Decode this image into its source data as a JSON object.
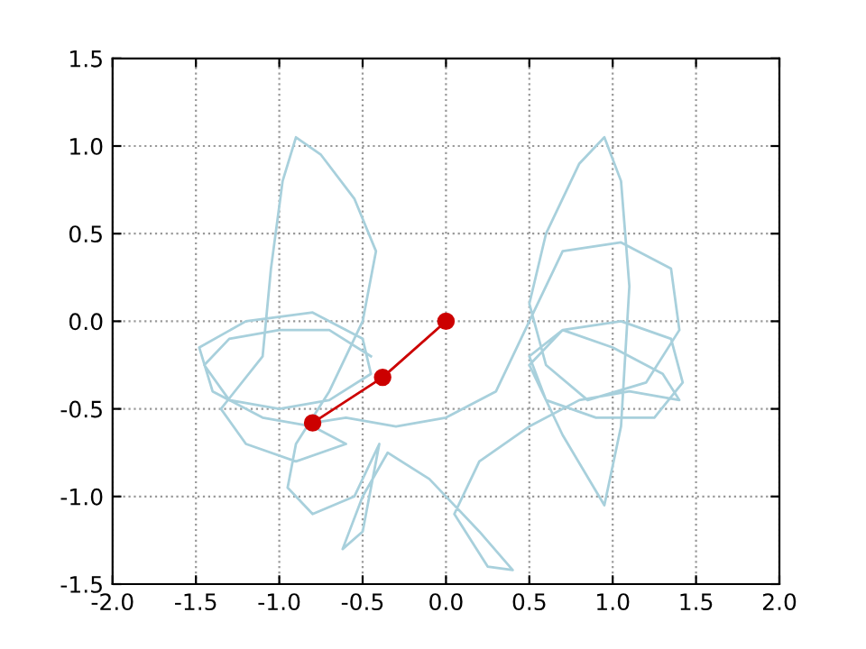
{
  "chart_data": {
    "type": "line",
    "grid": true,
    "xlim": [
      -2.0,
      2.0
    ],
    "xticks": [
      {
        "value": -2.0,
        "label": "-2.0"
      },
      {
        "value": -1.5,
        "label": "-1.5"
      },
      {
        "value": -1.0,
        "label": "-1.0"
      },
      {
        "value": -0.5,
        "label": "-0.5"
      },
      {
        "value": 0.0,
        "label": "0.0"
      },
      {
        "value": 0.5,
        "label": "0.5"
      },
      {
        "value": 1.0,
        "label": "1.0"
      },
      {
        "value": 1.5,
        "label": "1.5"
      },
      {
        "value": 2.0,
        "label": "2.0"
      }
    ],
    "ylim": [
      -1.5,
      1.5
    ],
    "yticks": [
      {
        "value": -1.5,
        "label": "-1.5"
      },
      {
        "value": -1.0,
        "label": "-1.0"
      },
      {
        "value": -0.5,
        "label": "-0.5"
      },
      {
        "value": 0.0,
        "label": "0.0"
      },
      {
        "value": 0.5,
        "label": "0.5"
      },
      {
        "value": 1.0,
        "label": "1.0"
      },
      {
        "value": 1.5,
        "label": "1.5"
      }
    ],
    "series": [
      {
        "color": "#a8d0dc",
        "marker": "none",
        "x": [
          -0.45,
          -0.7,
          -1.0,
          -1.3,
          -1.45,
          -1.3,
          -1.0,
          -0.7,
          -0.45,
          -0.5,
          -0.8,
          -1.2,
          -1.48,
          -1.4,
          -1.1,
          -0.8,
          -0.6,
          -0.9,
          -1.2,
          -1.35,
          -1.1,
          -1.05,
          -0.98,
          -0.9,
          -0.75,
          -0.55,
          -0.42,
          -0.5,
          -0.7,
          -0.9,
          -0.95,
          -0.8,
          -0.55,
          -0.4,
          -0.5,
          -0.62,
          -0.5,
          -0.35,
          -0.1,
          0.2,
          0.4,
          0.25,
          0.05,
          0.2,
          0.5,
          0.8,
          1.1,
          1.4,
          1.3,
          1.0,
          0.7,
          0.5,
          0.6,
          0.9,
          1.25,
          1.42,
          1.35,
          1.05,
          0.7,
          0.5,
          0.7,
          0.95,
          1.05,
          1.1,
          1.05,
          0.95,
          0.8,
          0.6,
          0.5,
          0.6,
          0.85,
          1.2,
          1.4,
          1.35,
          1.05,
          0.7,
          0.55,
          0.3,
          0.0,
          -0.3,
          -0.6,
          -0.8
        ],
        "values": [
          -0.2,
          -0.05,
          -0.05,
          -0.1,
          -0.25,
          -0.45,
          -0.5,
          -0.45,
          -0.3,
          -0.1,
          0.05,
          0.0,
          -0.15,
          -0.4,
          -0.55,
          -0.6,
          -0.7,
          -0.8,
          -0.7,
          -0.5,
          -0.2,
          0.3,
          0.8,
          1.05,
          0.95,
          0.7,
          0.4,
          0.0,
          -0.4,
          -0.7,
          -0.95,
          -1.1,
          -1.0,
          -0.7,
          -1.2,
          -1.3,
          -1.0,
          -0.75,
          -0.9,
          -1.2,
          -1.42,
          -1.4,
          -1.1,
          -0.8,
          -0.6,
          -0.45,
          -0.4,
          -0.45,
          -0.3,
          -0.15,
          -0.05,
          -0.2,
          -0.45,
          -0.55,
          -0.55,
          -0.35,
          -0.1,
          0.0,
          -0.05,
          -0.25,
          -0.65,
          -1.05,
          -0.6,
          0.2,
          0.8,
          1.05,
          0.9,
          0.5,
          0.1,
          -0.25,
          -0.45,
          -0.35,
          -0.05,
          0.3,
          0.45,
          0.4,
          0.1,
          -0.4,
          -0.55,
          -0.6,
          -0.55,
          -0.58
        ]
      },
      {
        "color": "#cc0000",
        "marker": "circle",
        "x": [
          0.0,
          -0.38,
          -0.8
        ],
        "values": [
          0.0,
          -0.32,
          -0.58
        ]
      }
    ]
  }
}
